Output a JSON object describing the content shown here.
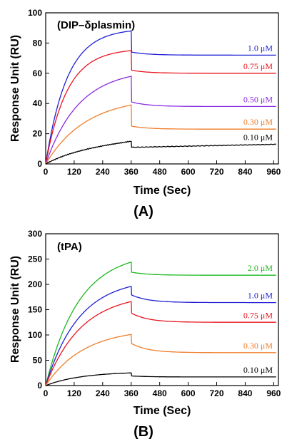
{
  "chart_data": [
    {
      "type": "line",
      "panel_label": "(A)",
      "title": "(DIP–δplasmin)",
      "xlabel": "Time (Sec)",
      "ylabel": "Response Unit (RU)",
      "xlim": [
        0,
        980
      ],
      "ylim": [
        0,
        100
      ],
      "xticks": [
        0,
        120,
        240,
        360,
        480,
        600,
        720,
        840,
        960
      ],
      "yticks": [
        0,
        20,
        40,
        60,
        80,
        100
      ],
      "series": [
        {
          "name": "1.0 μM",
          "color": "#1f1fd6",
          "plateau": 88,
          "tau": 90,
          "rise": 0,
          "dissoc_drop": 14,
          "end": 72
        },
        {
          "name": "0.75 μM",
          "color": "#e8141e",
          "plateau": 75,
          "tau": 90,
          "rise": 0,
          "dissoc_drop": 13,
          "end": 60
        },
        {
          "name": "0.50 μM",
          "color": "#8a2be2",
          "plateau": 58,
          "tau": 140,
          "rise": 0,
          "dissoc_drop": 17,
          "end": 38
        },
        {
          "name": "0.30 μM",
          "color": "#f07d2a",
          "plateau": 39,
          "tau": 170,
          "rise": 0,
          "dissoc_drop": 14,
          "end": 23
        },
        {
          "name": "0.10 μM",
          "color": "#000000",
          "plateau": 15,
          "tau": 100,
          "rise": 0.025,
          "dissoc_drop": 4,
          "end": 13
        }
      ]
    },
    {
      "type": "line",
      "panel_label": "(B)",
      "title": "(tPA)",
      "xlabel": "Time (Sec)",
      "ylabel": "Response Unit (RU)",
      "xlim": [
        0,
        980
      ],
      "ylim": [
        0,
        300
      ],
      "xticks": [
        0,
        120,
        240,
        360,
        480,
        600,
        720,
        840,
        960
      ],
      "yticks": [
        0,
        50,
        100,
        150,
        200,
        250,
        300
      ],
      "series": [
        {
          "name": "2.0 μM",
          "color": "#1db81d",
          "plateau": 244,
          "tau": 140,
          "rise": 0,
          "dissoc_drop": 20,
          "end": 218
        },
        {
          "name": "1.0 μM",
          "color": "#1f1fd6",
          "plateau": 196,
          "tau": 140,
          "rise": 0,
          "dissoc_drop": 17,
          "end": 164
        },
        {
          "name": "0.75 μM",
          "color": "#e8141e",
          "plateau": 166,
          "tau": 150,
          "rise": 0,
          "dissoc_drop": 23,
          "end": 125
        },
        {
          "name": "0.30 μM",
          "color": "#f07d2a",
          "plateau": 101,
          "tau": 160,
          "rise": 0,
          "dissoc_drop": 18,
          "end": 65
        },
        {
          "name": "0.10 μM",
          "color": "#000000",
          "plateau": 25,
          "tau": 150,
          "rise": 0,
          "dissoc_drop": 6,
          "end": 17
        }
      ]
    }
  ]
}
